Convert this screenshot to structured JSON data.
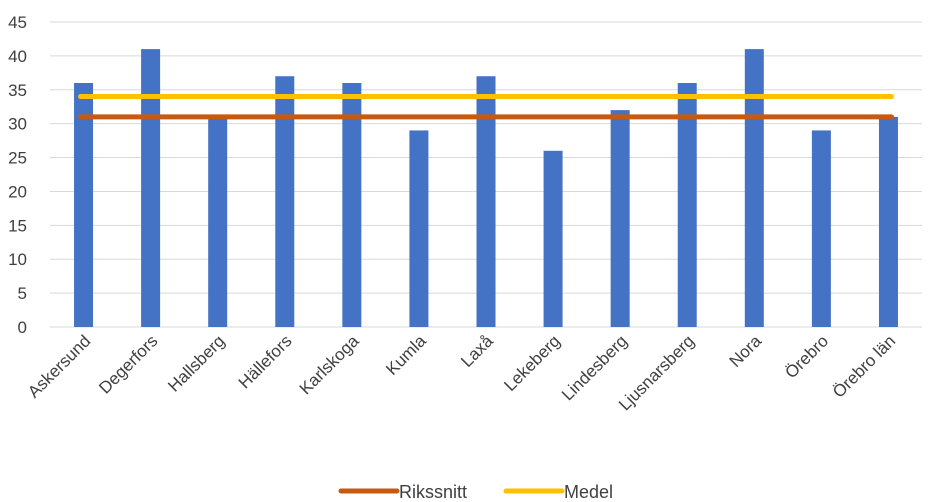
{
  "chart_data": {
    "type": "bar",
    "categories": [
      "Askersund",
      "Degerfors",
      "Hallsberg",
      "Hällefors",
      "Karlskoga",
      "Kumla",
      "Laxå",
      "Lekeberg",
      "Lindesberg",
      "Ljusnarsberg",
      "Nora",
      "Örebro",
      "Örebro län"
    ],
    "values": [
      36,
      41,
      31,
      37,
      36,
      29,
      37,
      26,
      32,
      36,
      41,
      29,
      31
    ],
    "lines": [
      {
        "name": "Rikssnitt",
        "value": 31,
        "color": "#C55A11"
      },
      {
        "name": "Medel",
        "value": 34,
        "color": "#FFC000"
      }
    ],
    "bar_color": "#4472C4",
    "ylim": [
      0,
      45
    ],
    "yticks": [
      "0",
      "5",
      "10",
      "15",
      "20",
      "25",
      "30",
      "35",
      "40",
      "45"
    ],
    "grid": true,
    "legend_position": "bottom",
    "title": "",
    "xlabel": "",
    "ylabel": ""
  }
}
